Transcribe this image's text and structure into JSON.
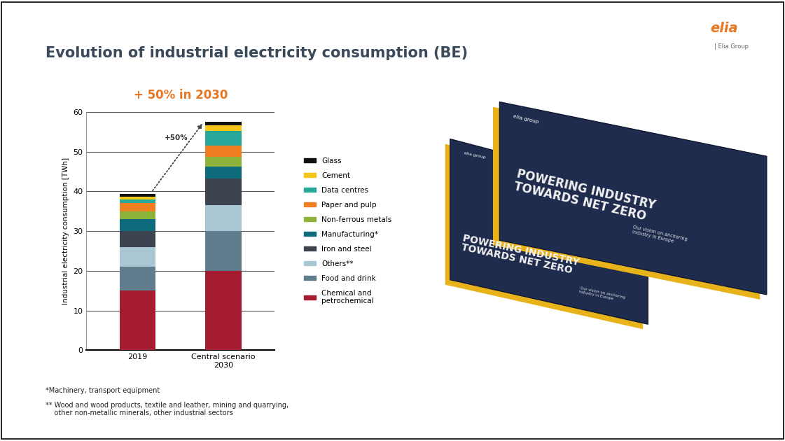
{
  "slide": {
    "title": "Evolution of industrial electricity consumption (BE)",
    "logo": "elia",
    "logo_sub": "| Elia Group",
    "book": {
      "brand": "elia group",
      "title": "POWERING INDUSTRY\nTOWARDS NET ZERO",
      "subtitle": "Our vision on anchoring\nindustry in Europe"
    }
  },
  "chart_data": {
    "type": "bar",
    "stacked": true,
    "title": "+ 50% in 2030",
    "ylabel": "Industrial electricity consumption [TWh]",
    "categories": [
      "2019",
      "Central scenario\n2030"
    ],
    "annotation": "+50%",
    "ylim": [
      0,
      60
    ],
    "yticks": [
      0,
      10,
      20,
      30,
      40,
      50,
      60
    ],
    "grid": true,
    "legend": "center left",
    "series": [
      {
        "name": "Chemical and\npetrochemical",
        "color": "#a51c30",
        "values": [
          15,
          20
        ]
      },
      {
        "name": "Food and drink",
        "color": "#5f7d8c",
        "values": [
          6,
          10
        ]
      },
      {
        "name": "Others**",
        "color": "#a9c7d3",
        "values": [
          5,
          6.5
        ]
      },
      {
        "name": "Iron and steel",
        "color": "#3d4450",
        "values": [
          4,
          6.8
        ]
      },
      {
        "name": "Manufacturing*",
        "color": "#0e6b7c",
        "values": [
          3,
          2.9
        ]
      },
      {
        "name": "Non-ferrous metals",
        "color": "#8db33a",
        "values": [
          2,
          2.6
        ]
      },
      {
        "name": "Paper and pulp",
        "color": "#f07f22",
        "values": [
          2,
          2.7
        ]
      },
      {
        "name": "Data centres",
        "color": "#2aa79b",
        "values": [
          1,
          3.7
        ]
      },
      {
        "name": "Cement",
        "color": "#f5c518",
        "values": [
          0.7,
          1.5
        ]
      },
      {
        "name": "Glass",
        "color": "#111111",
        "values": [
          0.6,
          0.8
        ]
      }
    ],
    "notes": [
      "*Machinery, transport equipment",
      "** Wood and wood products, textile and leather, mining and quarrying,\n    other non-metallic minerals, other industrial sectors"
    ]
  }
}
